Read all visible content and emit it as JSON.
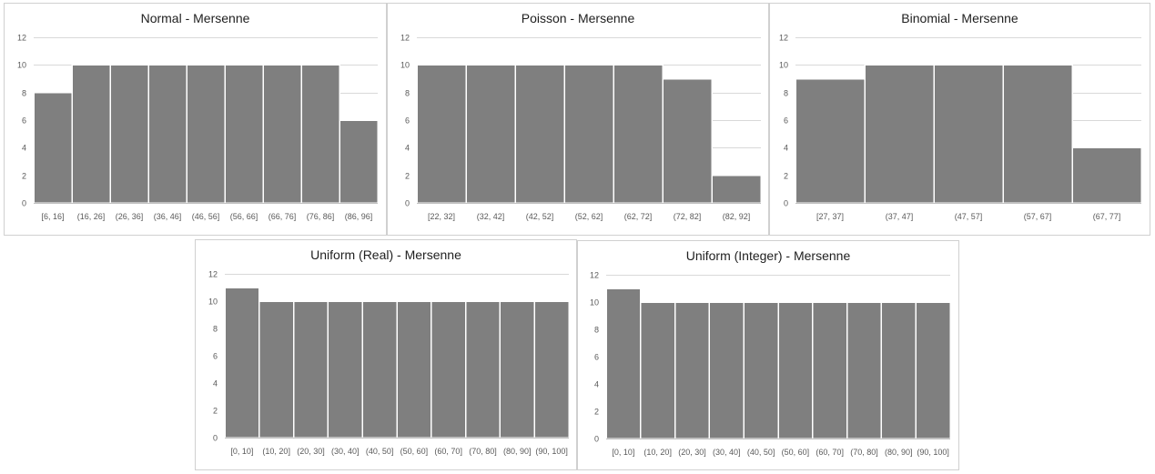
{
  "colors": {
    "bar": "#7f7f7f",
    "grid": "#d9d9d9",
    "panel_border": "#d0d0d0"
  },
  "chart_data": [
    {
      "type": "bar",
      "title": "Normal - Mersenne",
      "categories": [
        "[6, 16]",
        "(16, 26]",
        "(26, 36]",
        "(36, 46]",
        "(46, 56]",
        "(56, 66]",
        "(66, 76]",
        "(76, 86]",
        "(86, 96]"
      ],
      "values": [
        8,
        10,
        10,
        10,
        10,
        10,
        10,
        10,
        6
      ],
      "ylim": [
        0,
        12
      ],
      "yticks": [
        "0",
        "2",
        "4",
        "6",
        "8",
        "10",
        "12"
      ],
      "grid": true
    },
    {
      "type": "bar",
      "title": "Poisson - Mersenne",
      "categories": [
        "[22, 32]",
        "(32, 42]",
        "(42, 52]",
        "(52, 62]",
        "(62, 72]",
        "(72, 82]",
        "(82, 92]"
      ],
      "values": [
        10,
        10,
        10,
        10,
        10,
        9,
        2
      ],
      "ylim": [
        0,
        12
      ],
      "yticks": [
        "0",
        "2",
        "4",
        "6",
        "8",
        "10",
        "12"
      ],
      "grid": true
    },
    {
      "type": "bar",
      "title": "Binomial - Mersenne",
      "categories": [
        "[27, 37]",
        "(37, 47]",
        "(47, 57]",
        "(57, 67]",
        "(67, 77]"
      ],
      "values": [
        9,
        10,
        10,
        10,
        4
      ],
      "ylim": [
        0,
        12
      ],
      "yticks": [
        "0",
        "2",
        "4",
        "6",
        "8",
        "10",
        "12"
      ],
      "grid": true
    },
    {
      "type": "bar",
      "title": "Uniform (Real) - Mersenne",
      "categories": [
        "[0, 10]",
        "(10, 20]",
        "(20, 30]",
        "(30, 40]",
        "(40, 50]",
        "(50, 60]",
        "(60, 70]",
        "(70, 80]",
        "(80, 90]",
        "(90, 100]"
      ],
      "values": [
        11,
        10,
        10,
        10,
        10,
        10,
        10,
        10,
        10,
        10
      ],
      "ylim": [
        0,
        12
      ],
      "yticks": [
        "0",
        "2",
        "4",
        "6",
        "8",
        "10",
        "12"
      ],
      "grid": true
    },
    {
      "type": "bar",
      "title": "Uniform (Integer) - Mersenne",
      "categories": [
        "[0, 10]",
        "(10, 20]",
        "(20, 30]",
        "(30, 40]",
        "(40, 50]",
        "(50, 60]",
        "(60, 70]",
        "(70, 80]",
        "(80, 90]",
        "(90, 100]"
      ],
      "values": [
        11,
        10,
        10,
        10,
        10,
        10,
        10,
        10,
        10,
        10
      ],
      "ylim": [
        0,
        12
      ],
      "yticks": [
        "0",
        "2",
        "4",
        "6",
        "8",
        "10",
        "12"
      ],
      "grid": true
    }
  ]
}
